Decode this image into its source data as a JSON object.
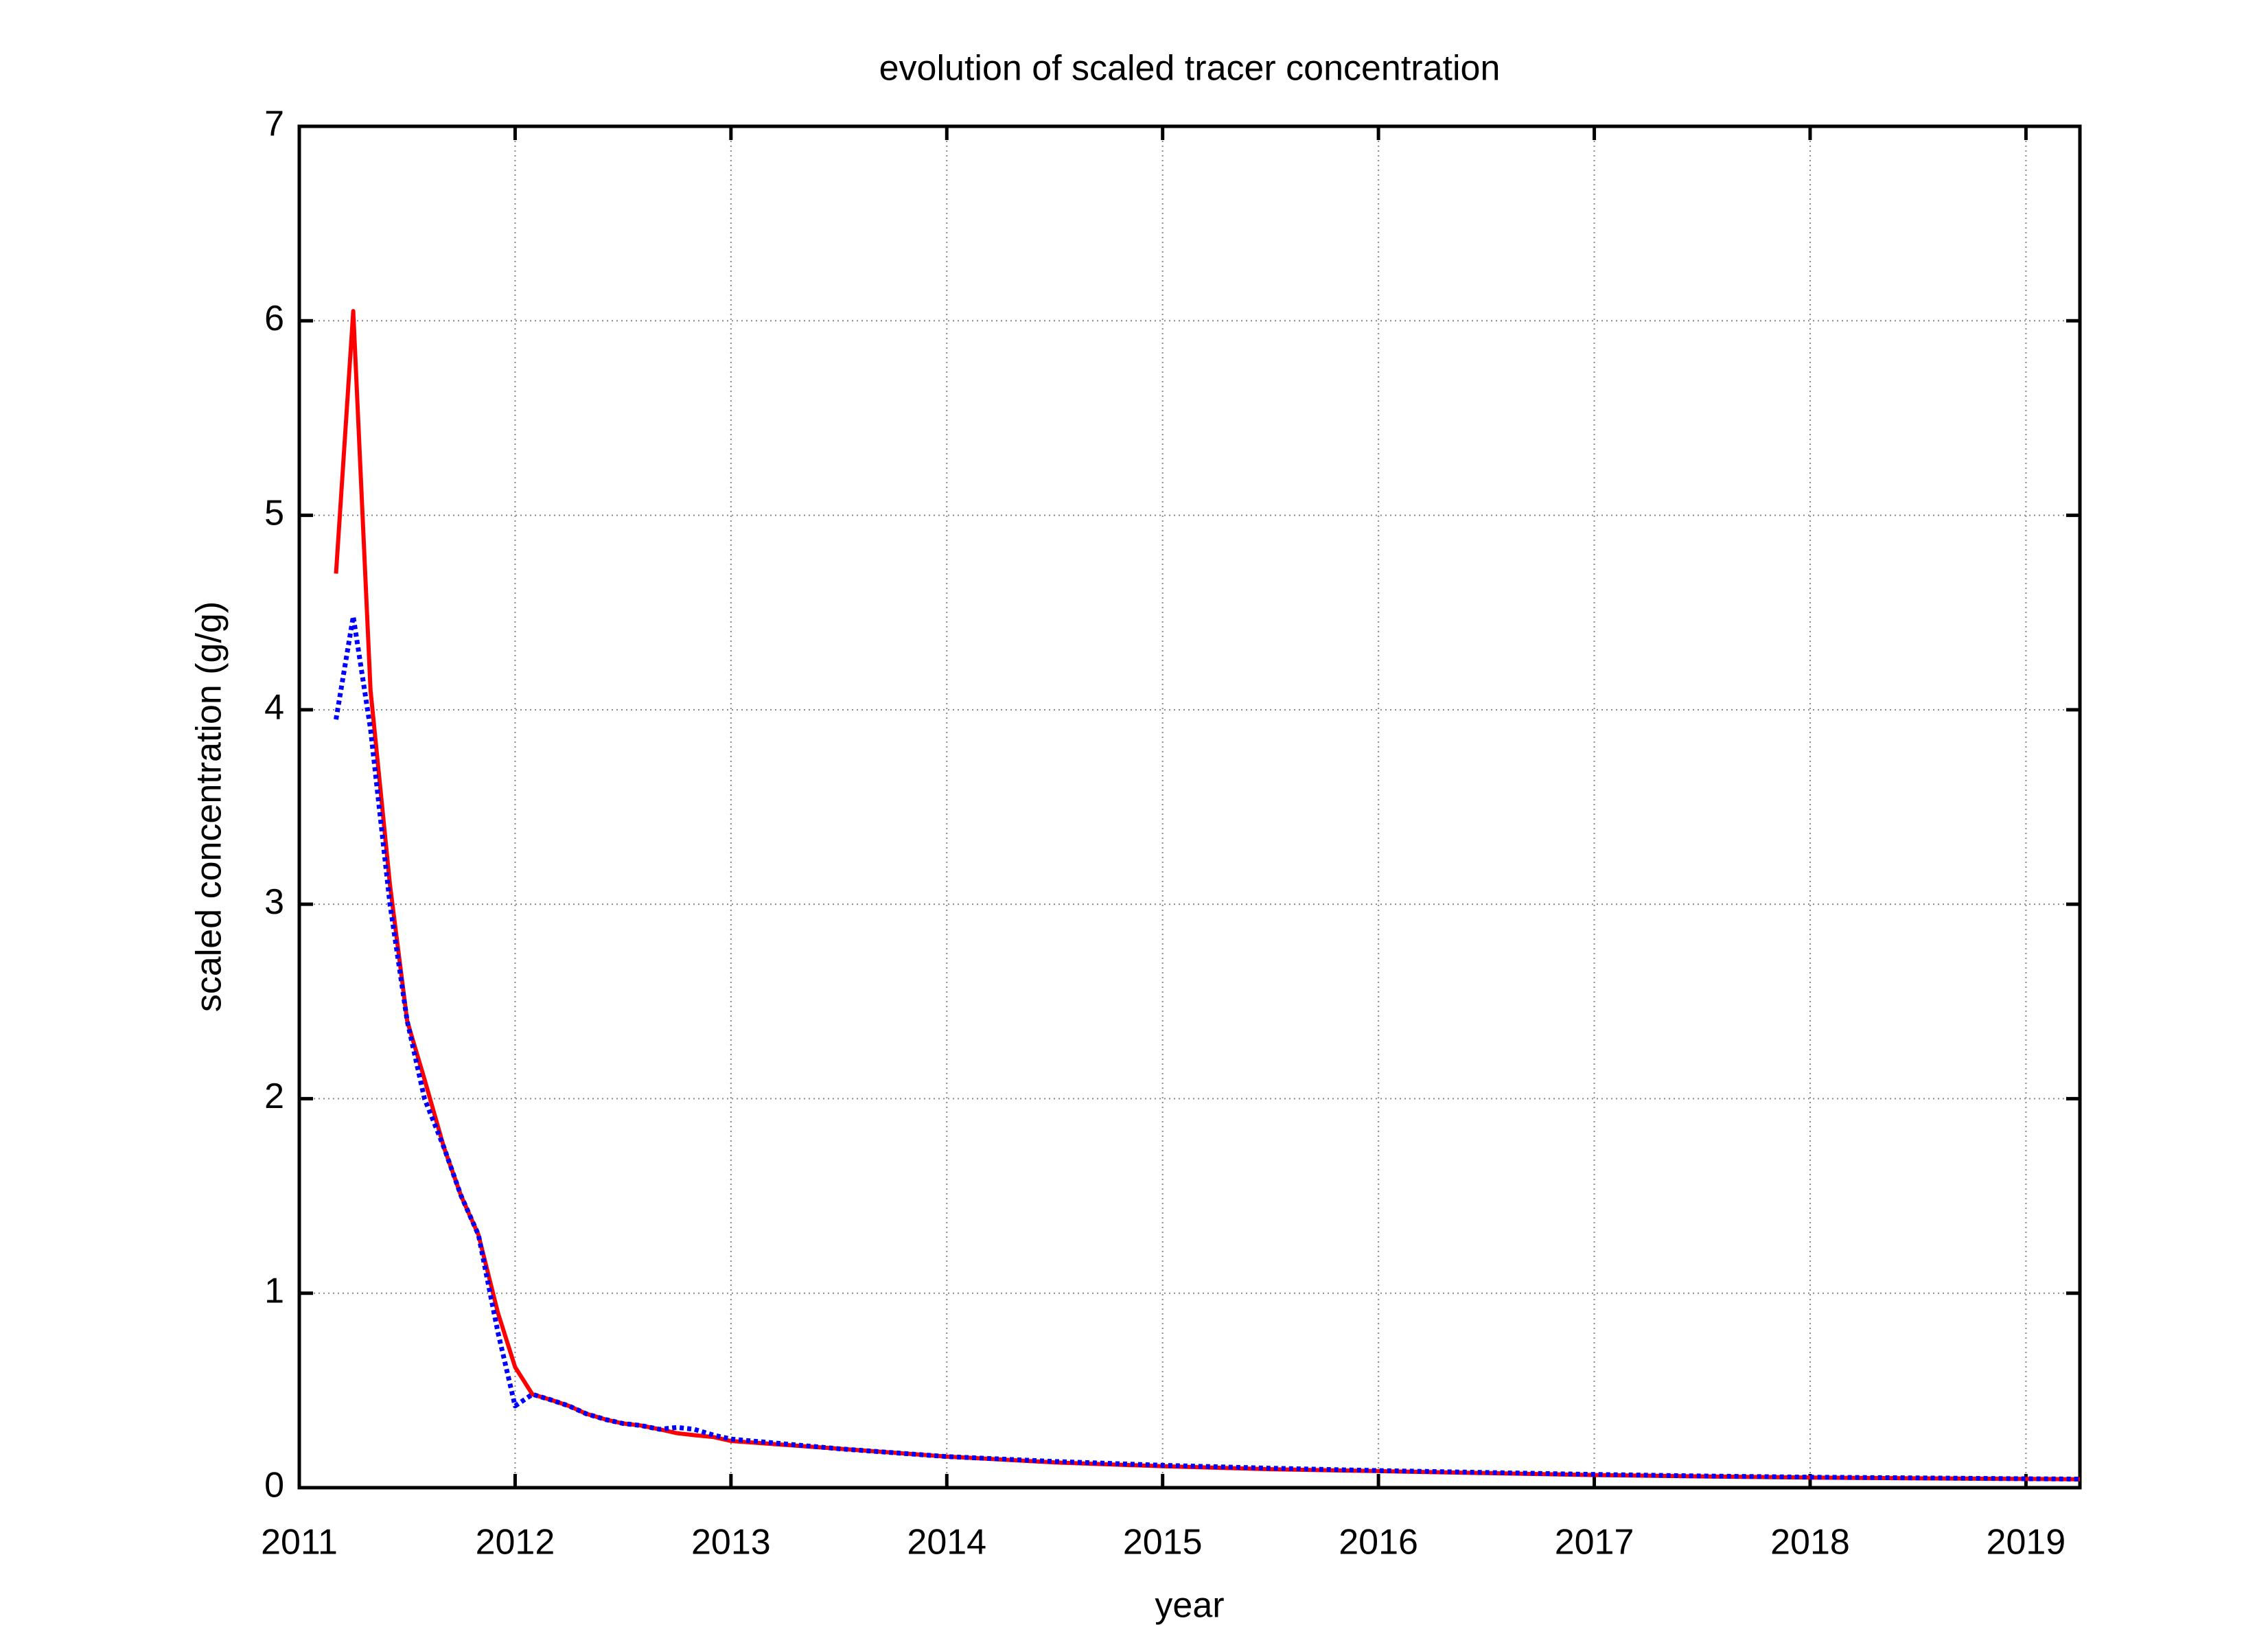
{
  "chart_data": {
    "type": "line",
    "title": "evolution of  scaled tracer concentration",
    "x_label": "year",
    "y_label": "scaled concentration (g/g)",
    "x": [
      2011.17,
      2011.25,
      2011.33,
      2011.42,
      2011.5,
      2011.58,
      2011.67,
      2011.75,
      2011.83,
      2011.92,
      2012.0,
      2012.08,
      2012.17,
      2012.25,
      2012.33,
      2012.42,
      2012.5,
      2012.58,
      2012.67,
      2012.75,
      2012.83,
      2012.92,
      2013.0,
      2013.5,
      2014.0,
      2014.5,
      2015.0,
      2015.5,
      2016.0,
      2016.5,
      2017.0,
      2017.5,
      2018.0,
      2018.5,
      2019.0,
      2019.25
    ],
    "series": [
      {
        "color": "#ff0000",
        "style": "solid",
        "values": [
          4.7,
          6.05,
          4.1,
          3.1,
          2.4,
          2.1,
          1.75,
          1.5,
          1.3,
          0.9,
          0.62,
          0.48,
          0.45,
          0.42,
          0.38,
          0.35,
          0.33,
          0.32,
          0.3,
          0.28,
          0.27,
          0.26,
          0.24,
          0.2,
          0.16,
          0.13,
          0.11,
          0.095,
          0.085,
          0.075,
          0.065,
          0.058,
          0.052,
          0.048,
          0.045,
          0.043
        ]
      },
      {
        "color": "#0000ff",
        "style": "dotted",
        "values": [
          3.95,
          4.48,
          3.9,
          3.0,
          2.4,
          2.0,
          1.75,
          1.5,
          1.3,
          0.8,
          0.42,
          0.48,
          0.45,
          0.42,
          0.38,
          0.35,
          0.33,
          0.32,
          0.3,
          0.31,
          0.3,
          0.27,
          0.25,
          0.2,
          0.16,
          0.135,
          0.115,
          0.1,
          0.088,
          0.078,
          0.068,
          0.06,
          0.054,
          0.05,
          0.046,
          0.044
        ]
      }
    ],
    "xlim": [
      2011,
      2019.25
    ],
    "xticks": [
      2011,
      2012,
      2013,
      2014,
      2015,
      2016,
      2017,
      2018,
      2019
    ],
    "ylim": [
      0,
      7
    ],
    "yticks": [
      0,
      1,
      2,
      3,
      4,
      5,
      6,
      7
    ],
    "grid": true
  }
}
